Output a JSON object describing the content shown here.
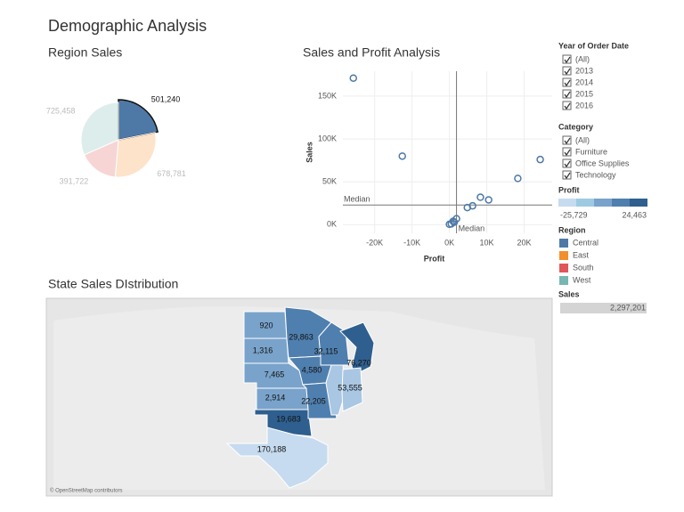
{
  "title": "Demographic Analysis",
  "chart_data": [
    {
      "type": "pie",
      "title": "Region Sales",
      "categories": [
        "Central",
        "East",
        "South",
        "West"
      ],
      "values": [
        501240,
        678781,
        391722,
        725458
      ],
      "value_labels": [
        "501,240",
        "678,781",
        "391,722",
        "725,458"
      ],
      "colors": [
        "#4e79a7",
        "#f28e2b",
        "#e15759",
        "#76b7b2"
      ],
      "highlight": "Central"
    },
    {
      "type": "scatter",
      "title": "Sales and Profit Analysis",
      "x_label": "Profit",
      "y_label": "Sales",
      "x": [
        -25700,
        -12600,
        24300,
        18300,
        8300,
        10500,
        6200,
        4800,
        1900,
        1000,
        500,
        0,
        1300
      ],
      "values": [
        171000,
        80000,
        76000,
        54000,
        32000,
        29000,
        22000,
        20000,
        7000,
        4000,
        1000,
        500,
        3000
      ],
      "color": "#4e79a7",
      "xlim": [
        -28500,
        27500
      ],
      "ylim": [
        -10000,
        179000
      ],
      "xticks": [
        {
          "value": -20000,
          "label": "-20K"
        },
        {
          "value": -10000,
          "label": "-10K"
        },
        {
          "value": 0,
          "label": "0K"
        },
        {
          "value": 10000,
          "label": "10K"
        },
        {
          "value": 20000,
          "label": "20K"
        }
      ],
      "yticks": [
        {
          "value": 0,
          "label": "0K"
        },
        {
          "value": 50000,
          "label": "50K"
        },
        {
          "value": 100000,
          "label": "100K"
        },
        {
          "value": 150000,
          "label": "150K"
        }
      ],
      "grid": true,
      "median_x": 1900,
      "median_y": 23000,
      "median_x_label": "Median",
      "median_y_label": "Median"
    }
  ],
  "filters": [
    {
      "title": "Year of Order Date",
      "items": [
        "(All)",
        "2013",
        "2014",
        "2015",
        "2016"
      ]
    },
    {
      "title": "Category",
      "items": [
        "(All)",
        "Furniture",
        "Office Supplies",
        "Technology"
      ]
    }
  ],
  "profit_legend": {
    "title": "Profit",
    "min": {
      "value": -25729,
      "label": "-25,729"
    },
    "max": {
      "value": 24463,
      "label": "24,463"
    },
    "colors": [
      "#c6dbef",
      "#9ecae1",
      "#79a3cb",
      "#4f7fae",
      "#2f5f8f"
    ]
  },
  "region_legend": {
    "title": "Region"
  },
  "sales_legend": {
    "title": "Sales",
    "value": 2297201,
    "label": "2,297,201"
  },
  "map": {
    "title": "State Sales DIstribution",
    "credit": "© OpenStreetMap contributors",
    "states": [
      {
        "label": "920",
        "color": "#79a3cb"
      },
      {
        "label": "1,316",
        "color": "#79a3cb"
      },
      {
        "label": "7,465",
        "color": "#79a3cb"
      },
      {
        "label": "2,914",
        "color": "#79a3cb"
      },
      {
        "label": "19,683",
        "color": "#2f5f8f"
      },
      {
        "label": "170,188",
        "color": "#c6dbef"
      },
      {
        "label": "29,863",
        "color": "#4f7fae"
      },
      {
        "label": "4,580",
        "color": "#4f7fae"
      },
      {
        "label": "22,205",
        "color": "#4f7fae"
      },
      {
        "label": "32,115",
        "color": "#4f7fae"
      },
      {
        "color": "#a9c7e3"
      },
      {
        "label": "76,270",
        "color": "#2f5f8f"
      },
      {
        "label": "53,555",
        "color": "#a9c7e3"
      }
    ]
  }
}
